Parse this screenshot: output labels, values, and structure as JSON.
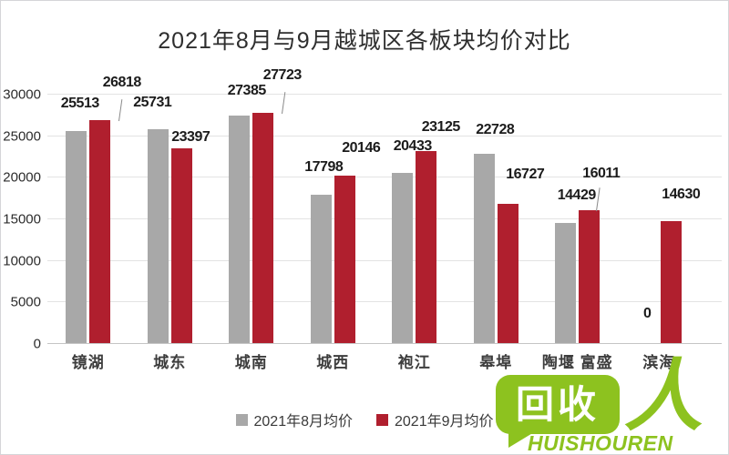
{
  "chart_data": {
    "type": "bar",
    "title": "2021年8月与9月越城区各板块均价对比",
    "categories": [
      "镜湖",
      "城东",
      "城南",
      "城西",
      "袍江",
      "皋埠",
      "陶堰 富盛",
      "滨海"
    ],
    "series": [
      {
        "name": "2021年8月均价",
        "color": "#a8a8a8",
        "values": [
          25513,
          25731,
          27385,
          17798,
          20433,
          22728,
          14429,
          0
        ]
      },
      {
        "name": "2021年9月均价",
        "color": "#b01f2e",
        "values": [
          26818,
          23397,
          27723,
          20146,
          23125,
          16727,
          16011,
          14630
        ]
      }
    ],
    "ylim": [
      0,
      30000
    ],
    "ytick_step": 5000,
    "yticks": [
      0,
      5000,
      10000,
      15000,
      20000,
      25000,
      30000
    ],
    "grid": true,
    "legend_position": "bottom",
    "bar_labels": true
  },
  "watermark": {
    "bubble_text": "回收",
    "person_glyph": "人",
    "caption": "HUISHOUREN",
    "color": "#8dc21f"
  }
}
